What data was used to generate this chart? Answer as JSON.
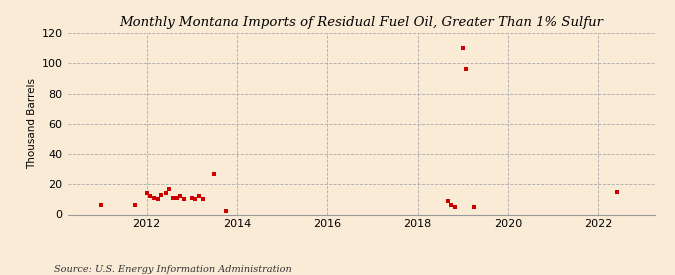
{
  "title": "Monthly Montana Imports of Residual Fuel Oil, Greater Than 1% Sulfur",
  "ylabel": "Thousand Barrels",
  "source": "Source: U.S. Energy Information Administration",
  "bg_color": "#faebd7",
  "marker_color": "#cc0000",
  "xlim": [
    2010.25,
    2023.25
  ],
  "ylim": [
    0,
    120
  ],
  "yticks": [
    0,
    20,
    40,
    60,
    80,
    100,
    120
  ],
  "xticks": [
    2012,
    2014,
    2016,
    2018,
    2020,
    2022
  ],
  "data_x": [
    2011.0,
    2011.75,
    2012.0,
    2012.08,
    2012.17,
    2012.25,
    2012.33,
    2012.42,
    2012.5,
    2012.58,
    2012.67,
    2012.75,
    2012.83,
    2013.0,
    2013.08,
    2013.17,
    2013.25,
    2013.5,
    2013.75,
    2018.67,
    2018.75,
    2018.83,
    2019.0,
    2019.08,
    2019.25,
    2022.42
  ],
  "data_y": [
    6,
    6,
    14,
    12,
    11,
    10,
    13,
    14,
    17,
    11,
    11,
    12,
    10,
    11,
    10,
    12,
    10,
    27,
    2,
    9,
    6,
    5,
    110,
    96,
    5,
    15
  ]
}
